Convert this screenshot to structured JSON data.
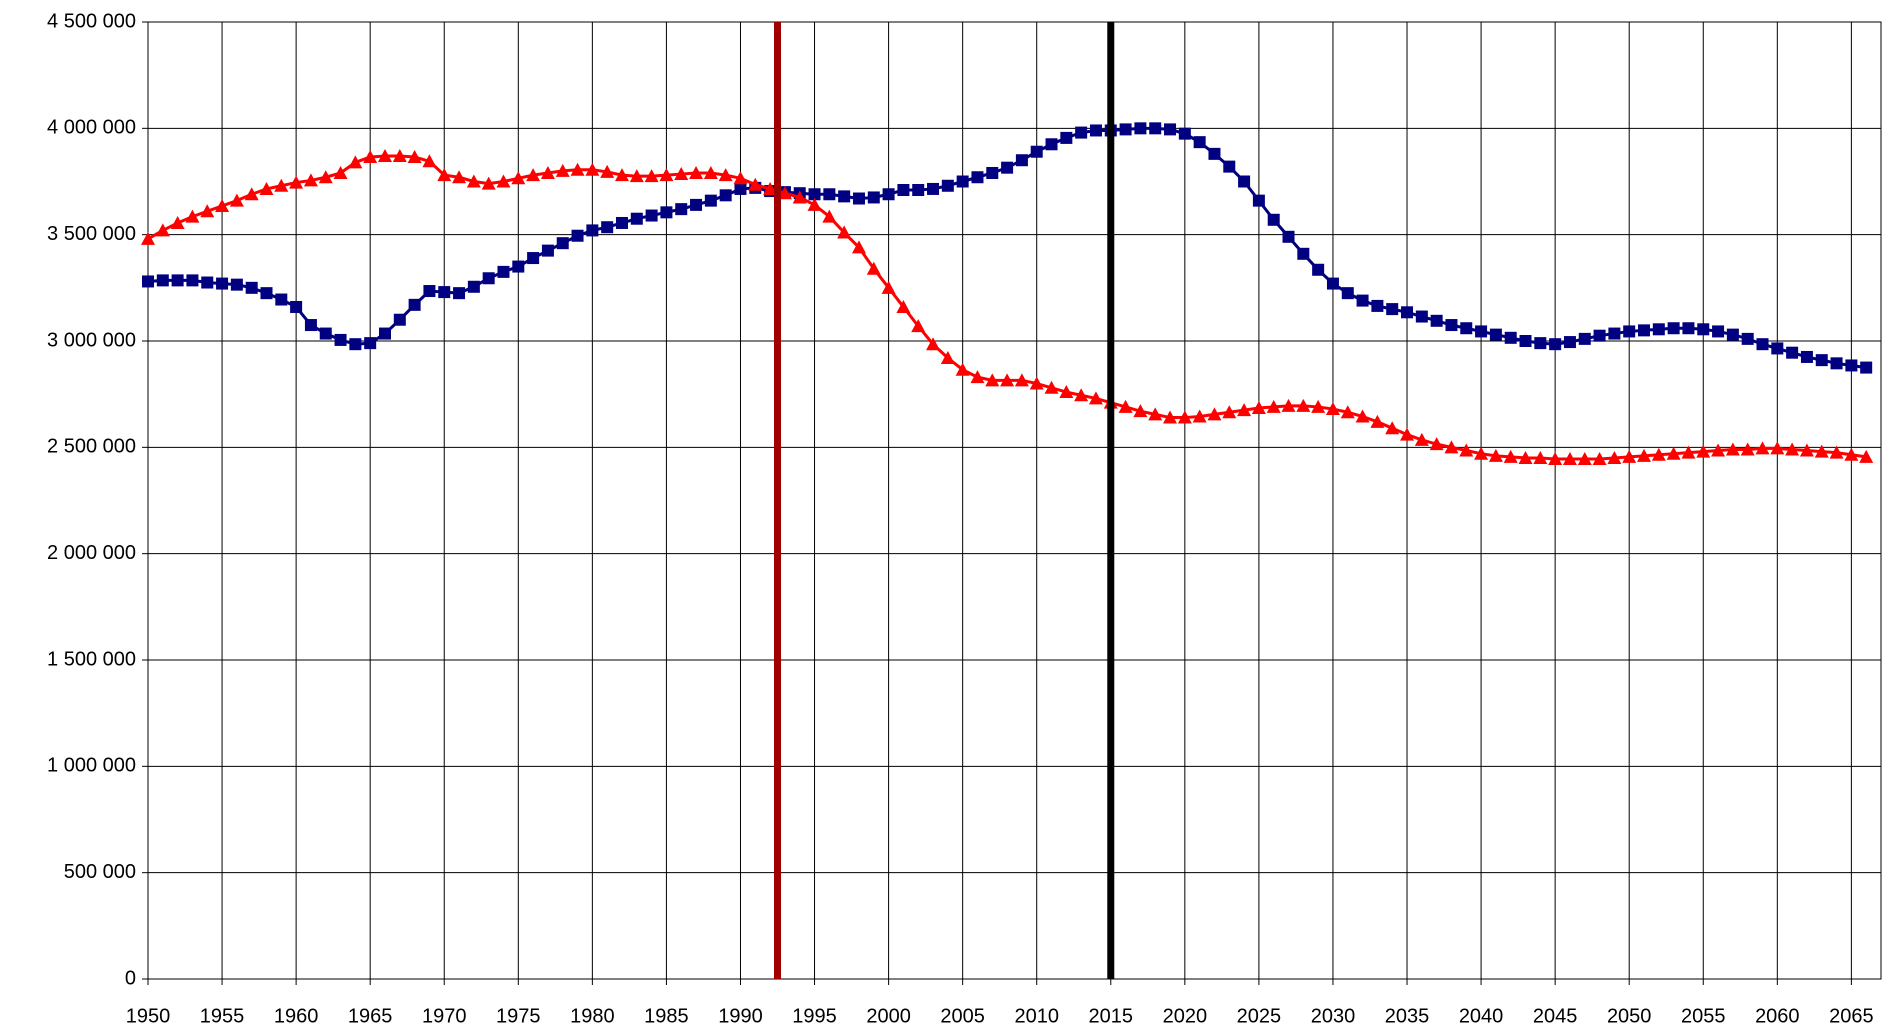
{
  "chart_data": {
    "type": "line",
    "x": [
      1950,
      1951,
      1952,
      1953,
      1954,
      1955,
      1956,
      1957,
      1958,
      1959,
      1960,
      1961,
      1962,
      1963,
      1964,
      1965,
      1966,
      1967,
      1968,
      1969,
      1970,
      1971,
      1972,
      1973,
      1974,
      1975,
      1976,
      1977,
      1978,
      1979,
      1980,
      1981,
      1982,
      1983,
      1984,
      1985,
      1986,
      1987,
      1988,
      1989,
      1990,
      1991,
      1992,
      1993,
      1994,
      1995,
      1996,
      1997,
      1998,
      1999,
      2000,
      2001,
      2002,
      2003,
      2004,
      2005,
      2006,
      2007,
      2008,
      2009,
      2010,
      2011,
      2012,
      2013,
      2014,
      2015,
      2016,
      2017,
      2018,
      2019,
      2020,
      2021,
      2022,
      2023,
      2024,
      2025,
      2026,
      2027,
      2028,
      2029,
      2030,
      2031,
      2032,
      2033,
      2034,
      2035,
      2036,
      2037,
      2038,
      2039,
      2040,
      2041,
      2042,
      2043,
      2044,
      2045,
      2046,
      2047,
      2048,
      2049,
      2050,
      2051,
      2052,
      2053,
      2054,
      2055,
      2056,
      2057,
      2058,
      2059,
      2060,
      2061,
      2062,
      2063,
      2064,
      2065,
      2066
    ],
    "series": [
      {
        "color": "#000080",
        "marker": "square",
        "values": [
          3280000,
          3285000,
          3285000,
          3285000,
          3275000,
          3270000,
          3265000,
          3250000,
          3225000,
          3195000,
          3160000,
          3075000,
          3035000,
          3005000,
          2985000,
          2990000,
          3035000,
          3100000,
          3170000,
          3235000,
          3230000,
          3225000,
          3255000,
          3295000,
          3325000,
          3350000,
          3390000,
          3425000,
          3460000,
          3495000,
          3520000,
          3535000,
          3555000,
          3575000,
          3590000,
          3605000,
          3620000,
          3640000,
          3660000,
          3685000,
          3715000,
          3720000,
          3705000,
          3700000,
          3695000,
          3690000,
          3690000,
          3680000,
          3670000,
          3675000,
          3690000,
          3710000,
          3710000,
          3715000,
          3730000,
          3750000,
          3770000,
          3790000,
          3815000,
          3850000,
          3890000,
          3925000,
          3955000,
          3980000,
          3990000,
          3990000,
          3995000,
          4000000,
          4000000,
          3995000,
          3975000,
          3935000,
          3880000,
          3820000,
          3750000,
          3660000,
          3570000,
          3490000,
          3410000,
          3335000,
          3270000,
          3225000,
          3190000,
          3165000,
          3150000,
          3135000,
          3115000,
          3095000,
          3075000,
          3060000,
          3045000,
          3030000,
          3015000,
          3000000,
          2990000,
          2985000,
          2995000,
          3010000,
          3025000,
          3035000,
          3045000,
          3050000,
          3055000,
          3060000,
          3060000,
          3055000,
          3045000,
          3030000,
          3010000,
          2985000,
          2965000,
          2945000,
          2925000,
          2910000,
          2895000,
          2885000,
          2875000
        ]
      },
      {
        "color": "#ff0000",
        "marker": "triangle",
        "values": [
          3480000,
          3520000,
          3555000,
          3585000,
          3610000,
          3635000,
          3660000,
          3690000,
          3715000,
          3730000,
          3745000,
          3755000,
          3770000,
          3790000,
          3840000,
          3865000,
          3870000,
          3870000,
          3865000,
          3845000,
          3780000,
          3770000,
          3750000,
          3740000,
          3750000,
          3765000,
          3780000,
          3790000,
          3800000,
          3805000,
          3805000,
          3795000,
          3780000,
          3775000,
          3775000,
          3780000,
          3785000,
          3790000,
          3790000,
          3780000,
          3765000,
          3735000,
          3715000,
          3695000,
          3675000,
          3640000,
          3585000,
          3510000,
          3440000,
          3340000,
          3250000,
          3160000,
          3070000,
          2985000,
          2920000,
          2865000,
          2830000,
          2815000,
          2815000,
          2815000,
          2800000,
          2780000,
          2760000,
          2745000,
          2730000,
          2710000,
          2690000,
          2670000,
          2655000,
          2640000,
          2640000,
          2645000,
          2655000,
          2665000,
          2675000,
          2685000,
          2690000,
          2695000,
          2695000,
          2690000,
          2680000,
          2665000,
          2645000,
          2620000,
          2590000,
          2560000,
          2535000,
          2515000,
          2500000,
          2485000,
          2470000,
          2460000,
          2455000,
          2450000,
          2450000,
          2445000,
          2445000,
          2445000,
          2445000,
          2450000,
          2455000,
          2460000,
          2465000,
          2470000,
          2475000,
          2480000,
          2485000,
          2490000,
          2490000,
          2495000,
          2495000,
          2490000,
          2485000,
          2480000,
          2475000,
          2465000,
          2455000
        ]
      }
    ],
    "vlines": [
      {
        "x": 1992.5,
        "color": "#a00000"
      },
      {
        "x": 2015,
        "color": "#000000"
      }
    ],
    "xlim": [
      1950,
      2067
    ],
    "xticks": [
      1950,
      1955,
      1960,
      1965,
      1970,
      1975,
      1980,
      1985,
      1990,
      1995,
      2000,
      2005,
      2010,
      2015,
      2020,
      2025,
      2030,
      2035,
      2040,
      2045,
      2050,
      2055,
      2060,
      2065
    ],
    "ylim": [
      0,
      4500000
    ],
    "yticks": [
      0,
      {
        "value": 500000,
        "label": "500 000"
      },
      {
        "value": 1000000,
        "label": "1 000 000"
      },
      {
        "value": 1500000,
        "label": "1 500 000"
      },
      {
        "value": 2000000,
        "label": "2 000 000"
      },
      {
        "value": 2500000,
        "label": "2 500 000"
      },
      {
        "value": 3000000,
        "label": "3 000 000"
      },
      {
        "value": 3500000,
        "label": "3 500 000"
      },
      {
        "value": 4000000,
        "label": "4 000 000"
      },
      {
        "value": 4500000,
        "label": "4 500 000"
      }
    ],
    "grid": true
  }
}
